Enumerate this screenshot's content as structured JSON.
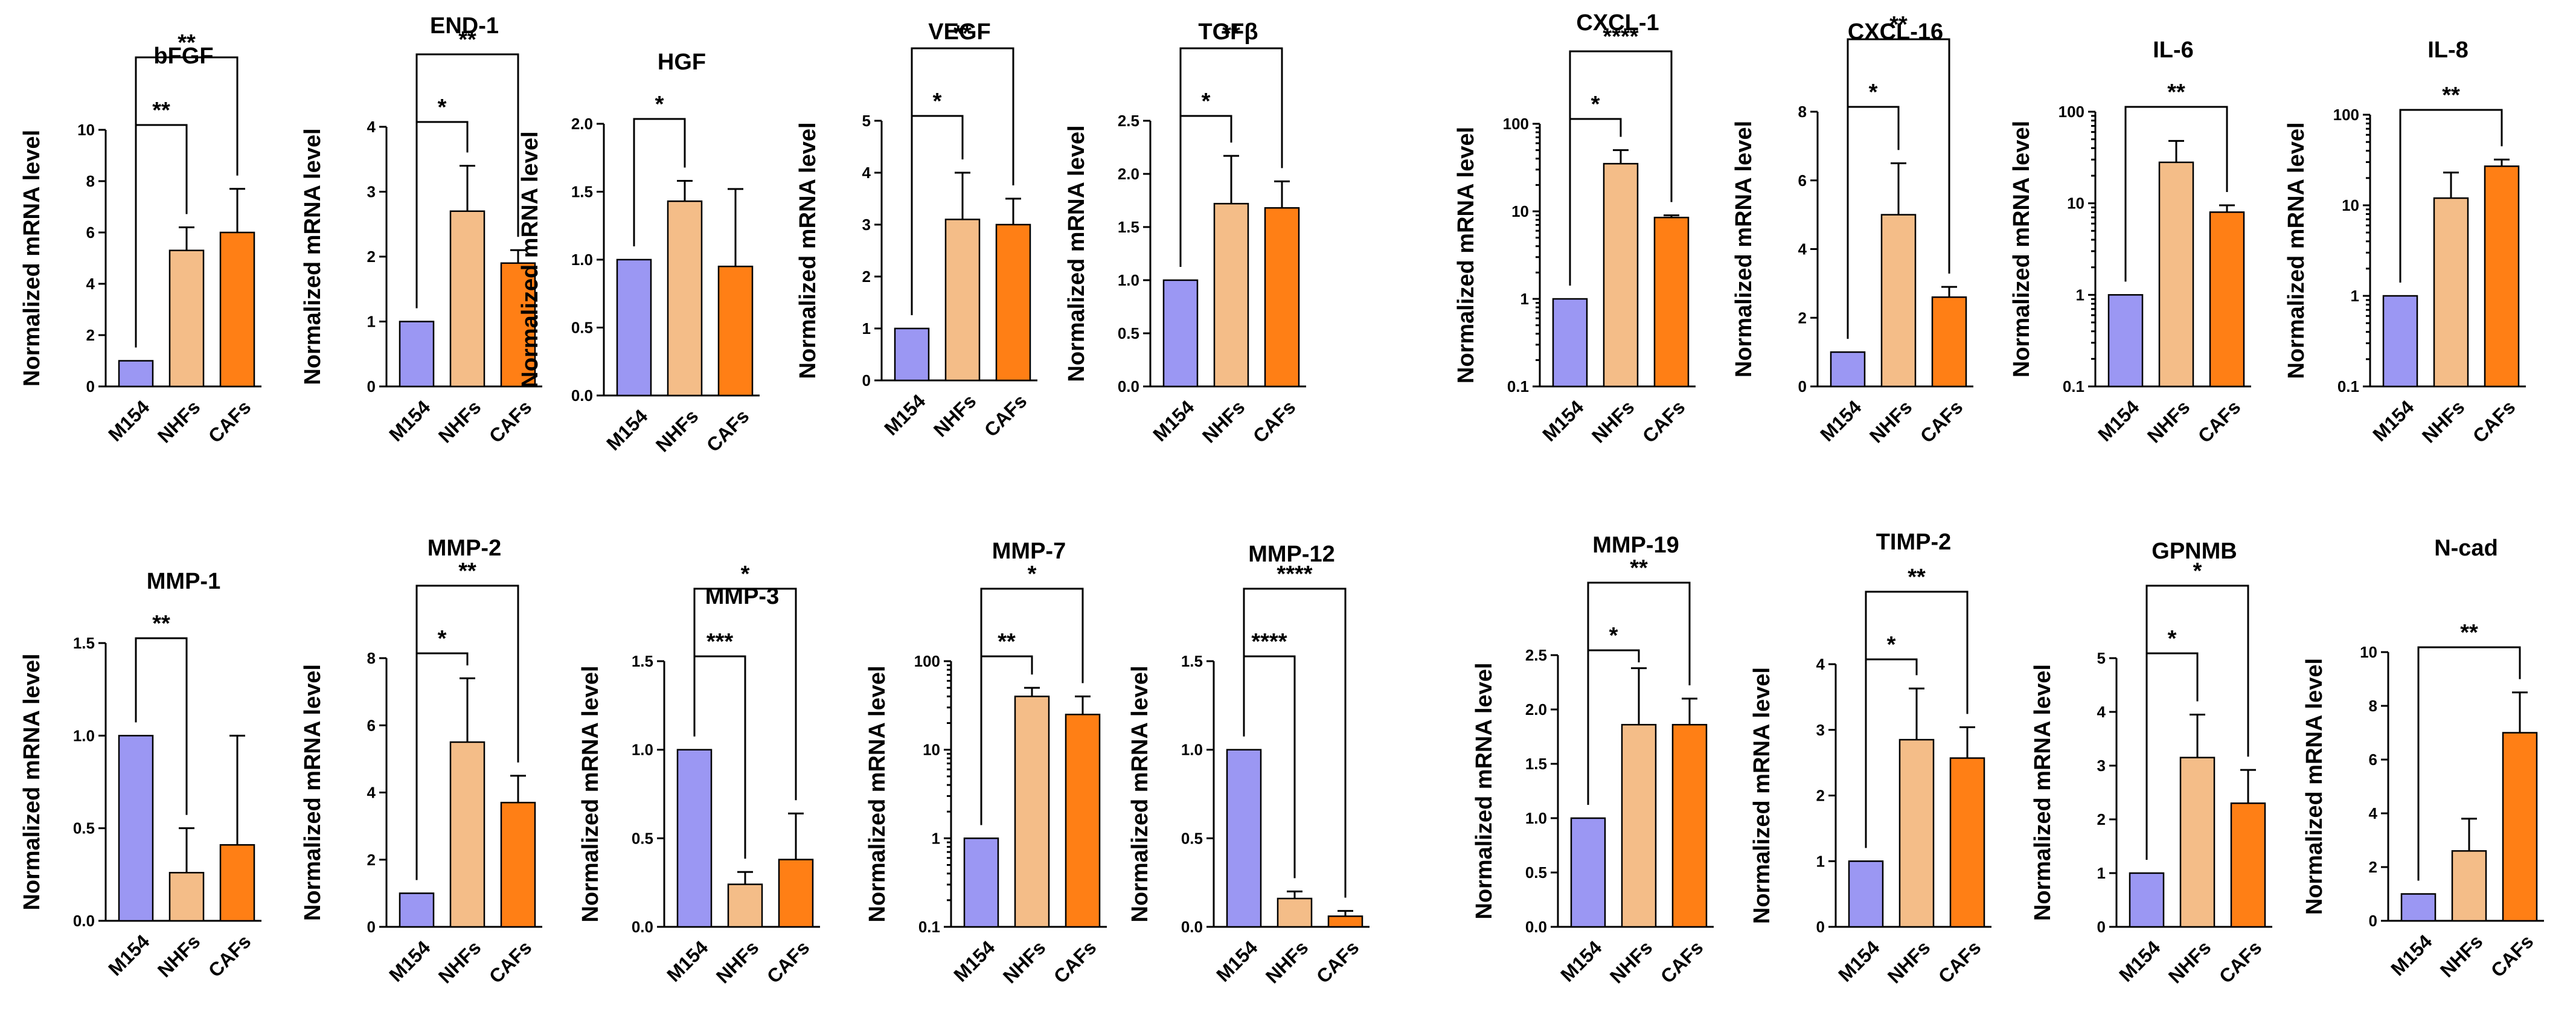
{
  "chart_data": [
    {
      "type": "bar",
      "title": "bFGF",
      "ylabel": "Normalized mRNA level",
      "scale": "linear",
      "ylim": [
        0,
        10
      ],
      "ticks": [
        "0",
        "2",
        "4",
        "6",
        "8",
        "10"
      ],
      "categories": [
        "M154",
        "NHFs",
        "CAFs"
      ],
      "values": [
        1.0,
        5.3,
        6.0
      ],
      "errors": [
        0,
        0.9,
        1.7
      ],
      "colors": [
        "#9b97f3",
        "#f4bd88",
        "#ff7f15"
      ],
      "significance": [
        {
          "label": "**",
          "from": 0,
          "to": 1,
          "level": 1
        },
        {
          "label": "**",
          "from": 0,
          "to": 2,
          "level": 2
        }
      ]
    },
    {
      "type": "bar",
      "title": "END-1",
      "ylabel": "Normalized mRNA level",
      "scale": "linear",
      "ylim": [
        0,
        4
      ],
      "ticks": [
        "0",
        "1",
        "2",
        "3",
        "4"
      ],
      "categories": [
        "M154",
        "NHFs",
        "CAFs"
      ],
      "values": [
        1.0,
        2.7,
        1.9
      ],
      "errors": [
        0,
        0.7,
        0.2
      ],
      "colors": [
        "#9b97f3",
        "#f4bd88",
        "#ff7f15"
      ],
      "significance": [
        {
          "label": "*",
          "from": 0,
          "to": 1,
          "level": 1
        },
        {
          "label": "**",
          "from": 0,
          "to": 2,
          "level": 2
        }
      ]
    },
    {
      "type": "bar",
      "title": "HGF",
      "ylabel": "Normalized mRNA level",
      "scale": "linear",
      "ylim": [
        0,
        2
      ],
      "ticks": [
        "0.0",
        "0.5",
        "1.0",
        "1.5",
        "2.0"
      ],
      "categories": [
        "M154",
        "NHFs",
        "CAFs"
      ],
      "values": [
        1.0,
        1.43,
        0.95
      ],
      "errors": [
        0,
        0.15,
        0.57
      ],
      "colors": [
        "#9b97f3",
        "#f4bd88",
        "#ff7f15"
      ],
      "significance": [
        {
          "label": "*",
          "from": 0,
          "to": 1,
          "level": 1
        }
      ]
    },
    {
      "type": "bar",
      "title": "VEGF",
      "ylabel": "Normalized mRNA level",
      "scale": "linear",
      "ylim": [
        0,
        5
      ],
      "ticks": [
        "0",
        "1",
        "2",
        "3",
        "4",
        "5"
      ],
      "categories": [
        "M154",
        "NHFs",
        "CAFs"
      ],
      "values": [
        1.0,
        3.1,
        3.0
      ],
      "errors": [
        0,
        0.9,
        0.5
      ],
      "colors": [
        "#9b97f3",
        "#f4bd88",
        "#ff7f15"
      ],
      "significance": [
        {
          "label": "*",
          "from": 0,
          "to": 1,
          "level": 1
        },
        {
          "label": "**",
          "from": 0,
          "to": 2,
          "level": 2
        }
      ]
    },
    {
      "type": "bar",
      "title": "TGFβ",
      "ylabel": "Normalized mRNA level",
      "scale": "linear",
      "ylim": [
        0,
        2.5
      ],
      "ticks": [
        "0.0",
        "0.5",
        "1.0",
        "1.5",
        "2.0",
        "2.5"
      ],
      "categories": [
        "M154",
        "NHFs",
        "CAFs"
      ],
      "values": [
        1.0,
        1.72,
        1.68
      ],
      "errors": [
        0,
        0.45,
        0.25
      ],
      "colors": [
        "#9b97f3",
        "#f4bd88",
        "#ff7f15"
      ],
      "significance": [
        {
          "label": "*",
          "from": 0,
          "to": 1,
          "level": 1
        },
        {
          "label": "**",
          "from": 0,
          "to": 2,
          "level": 2
        }
      ]
    },
    {
      "type": "bar",
      "title": "CXCL-1",
      "ylabel": "Normalized mRNA level",
      "scale": "log",
      "ylim": [
        0.1,
        100
      ],
      "ticks": [
        "0.1",
        "1",
        "10",
        "100"
      ],
      "categories": [
        "M154",
        "NHFs",
        "CAFs"
      ],
      "values": [
        1.0,
        35,
        8.5
      ],
      "errors": [
        0,
        15,
        0.5
      ],
      "colors": [
        "#9b97f3",
        "#f4bd88",
        "#ff7f15"
      ],
      "significance": [
        {
          "label": "*",
          "from": 0,
          "to": 1,
          "level": 1
        },
        {
          "label": "****",
          "from": 0,
          "to": 2,
          "level": 2
        }
      ]
    },
    {
      "type": "bar",
      "title": "CXCL-16",
      "ylabel": "Normalized mRNA level",
      "scale": "linear",
      "ylim": [
        0,
        8
      ],
      "ticks": [
        "0",
        "2",
        "4",
        "6",
        "8"
      ],
      "categories": [
        "M154",
        "NHFs",
        "CAFs"
      ],
      "values": [
        1.0,
        5.0,
        2.6
      ],
      "errors": [
        0,
        1.5,
        0.3
      ],
      "colors": [
        "#9b97f3",
        "#f4bd88",
        "#ff7f15"
      ],
      "significance": [
        {
          "label": "*",
          "from": 0,
          "to": 1,
          "level": 1
        },
        {
          "label": "**",
          "from": 0,
          "to": 2,
          "level": 2
        }
      ]
    },
    {
      "type": "bar",
      "title": "IL-6",
      "ylabel": "Normalized mRNA level",
      "scale": "log",
      "ylim": [
        0.1,
        100
      ],
      "ticks": [
        "0.1",
        "1",
        "10",
        "100"
      ],
      "categories": [
        "M154",
        "NHFs",
        "CAFs"
      ],
      "values": [
        1.0,
        28,
        8
      ],
      "errors": [
        0,
        20,
        1.5
      ],
      "colors": [
        "#9b97f3",
        "#f4bd88",
        "#ff7f15"
      ],
      "significance": [
        {
          "label": "**",
          "from": 0,
          "to": 2,
          "level": 1
        }
      ]
    },
    {
      "type": "bar",
      "title": "IL-8",
      "ylabel": "Normalized mRNA level",
      "scale": "log",
      "ylim": [
        0.1,
        100
      ],
      "ticks": [
        "0.1",
        "1",
        "10",
        "100"
      ],
      "categories": [
        "M154",
        "NHFs",
        "CAFs"
      ],
      "values": [
        1.0,
        12,
        27
      ],
      "errors": [
        0,
        11,
        5
      ],
      "colors": [
        "#9b97f3",
        "#f4bd88",
        "#ff7f15"
      ],
      "significance": [
        {
          "label": "**",
          "from": 0,
          "to": 2,
          "level": 1
        }
      ]
    },
    {
      "type": "bar",
      "title": "MMP-1",
      "ylabel": "Normalized mRNA level",
      "scale": "linear",
      "ylim": [
        0,
        1.5
      ],
      "ticks": [
        "0.0",
        "0.5",
        "1.0",
        "1.5"
      ],
      "categories": [
        "M154",
        "NHFs",
        "CAFs"
      ],
      "values": [
        1.0,
        0.26,
        0.41
      ],
      "errors": [
        0,
        0.24,
        0.59
      ],
      "colors": [
        "#9b97f3",
        "#f4bd88",
        "#ff7f15"
      ],
      "significance": [
        {
          "label": "**",
          "from": 0,
          "to": 1,
          "level": 1
        }
      ]
    },
    {
      "type": "bar",
      "title": "MMP-2",
      "ylabel": "Normalized mRNA level",
      "scale": "linear",
      "ylim": [
        0,
        8
      ],
      "ticks": [
        "0",
        "2",
        "4",
        "6",
        "8"
      ],
      "categories": [
        "M154",
        "NHFs",
        "CAFs"
      ],
      "values": [
        1.0,
        5.5,
        3.7
      ],
      "errors": [
        0,
        1.9,
        0.8
      ],
      "colors": [
        "#9b97f3",
        "#f4bd88",
        "#ff7f15"
      ],
      "significance": [
        {
          "label": "*",
          "from": 0,
          "to": 1,
          "level": 1
        },
        {
          "label": "**",
          "from": 0,
          "to": 2,
          "level": 2
        }
      ]
    },
    {
      "type": "bar",
      "title": "MMP-3",
      "ylabel": "Normalized mRNA level",
      "scale": "linear",
      "ylim": [
        0,
        1.5
      ],
      "ticks": [
        "0.0",
        "0.5",
        "1.0",
        "1.5"
      ],
      "categories": [
        "M154",
        "NHFs",
        "CAFs"
      ],
      "values": [
        1.0,
        0.24,
        0.38
      ],
      "errors": [
        0,
        0.07,
        0.26
      ],
      "colors": [
        "#9b97f3",
        "#f4bd88",
        "#ff7f15"
      ],
      "significance": [
        {
          "label": "***",
          "from": 0,
          "to": 1,
          "level": 1
        },
        {
          "label": "*",
          "from": 0,
          "to": 2,
          "level": 2
        }
      ]
    },
    {
      "type": "bar",
      "title": "MMP-7",
      "ylabel": "Normalized mRNA level",
      "scale": "log",
      "ylim": [
        0.1,
        100
      ],
      "ticks": [
        "0.1",
        "1",
        "10",
        "100"
      ],
      "categories": [
        "M154",
        "NHFs",
        "CAFs"
      ],
      "values": [
        1.0,
        40,
        25
      ],
      "errors": [
        0,
        10,
        15
      ],
      "colors": [
        "#9b97f3",
        "#f4bd88",
        "#ff7f15"
      ],
      "significance": [
        {
          "label": "**",
          "from": 0,
          "to": 1,
          "level": 1
        },
        {
          "label": "*",
          "from": 0,
          "to": 2,
          "level": 2
        }
      ]
    },
    {
      "type": "bar",
      "title": "MMP-12",
      "ylabel": "Normalized mRNA level",
      "scale": "linear",
      "ylim": [
        0,
        1.5
      ],
      "ticks": [
        "0.0",
        "0.5",
        "1.0",
        "1.5"
      ],
      "categories": [
        "M154",
        "NHFs",
        "CAFs"
      ],
      "values": [
        1.0,
        0.16,
        0.06
      ],
      "errors": [
        0,
        0.04,
        0.03
      ],
      "colors": [
        "#9b97f3",
        "#f4bd88",
        "#ff7f15"
      ],
      "significance": [
        {
          "label": "****",
          "from": 0,
          "to": 1,
          "level": 1
        },
        {
          "label": "****",
          "from": 0,
          "to": 2,
          "level": 2
        }
      ]
    },
    {
      "type": "bar",
      "title": "MMP-19",
      "ylabel": "Normalized mRNA level",
      "scale": "linear",
      "ylim": [
        0,
        2.5
      ],
      "ticks": [
        "0.0",
        "0.5",
        "1.0",
        "1.5",
        "2.0",
        "2.5"
      ],
      "categories": [
        "M154",
        "NHFs",
        "CAFs"
      ],
      "values": [
        1.0,
        1.86,
        1.86
      ],
      "errors": [
        0,
        0.52,
        0.24
      ],
      "colors": [
        "#9b97f3",
        "#f4bd88",
        "#ff7f15"
      ],
      "significance": [
        {
          "label": "*",
          "from": 0,
          "to": 1,
          "level": 1
        },
        {
          "label": "**",
          "from": 0,
          "to": 2,
          "level": 2
        }
      ]
    },
    {
      "type": "bar",
      "title": "TIMP-2",
      "ylabel": "Normalized mRNA level",
      "scale": "linear",
      "ylim": [
        0,
        4
      ],
      "ticks": [
        "0",
        "1",
        "2",
        "3",
        "4"
      ],
      "categories": [
        "M154",
        "NHFs",
        "CAFs"
      ],
      "values": [
        1.0,
        2.85,
        2.57
      ],
      "errors": [
        0,
        0.78,
        0.47
      ],
      "colors": [
        "#9b97f3",
        "#f4bd88",
        "#ff7f15"
      ],
      "significance": [
        {
          "label": "*",
          "from": 0,
          "to": 1,
          "level": 1
        },
        {
          "label": "**",
          "from": 0,
          "to": 2,
          "level": 2
        }
      ]
    },
    {
      "type": "bar",
      "title": "GPNMB",
      "ylabel": "Normalized mRNA level",
      "scale": "linear",
      "ylim": [
        0,
        5
      ],
      "ticks": [
        "0",
        "1",
        "2",
        "3",
        "4",
        "5"
      ],
      "categories": [
        "M154",
        "NHFs",
        "CAFs"
      ],
      "values": [
        1.0,
        3.15,
        2.3
      ],
      "errors": [
        0,
        0.8,
        0.62
      ],
      "colors": [
        "#9b97f3",
        "#f4bd88",
        "#ff7f15"
      ],
      "significance": [
        {
          "label": "*",
          "from": 0,
          "to": 1,
          "level": 1
        },
        {
          "label": "*",
          "from": 0,
          "to": 2,
          "level": 2
        }
      ]
    },
    {
      "type": "bar",
      "title": "N-cad",
      "ylabel": "Normalized mRNA level",
      "scale": "linear",
      "ylim": [
        0,
        10
      ],
      "ticks": [
        "0",
        "2",
        "4",
        "6",
        "8",
        "10"
      ],
      "categories": [
        "M154",
        "NHFs",
        "CAFs"
      ],
      "values": [
        1.0,
        2.6,
        7.0
      ],
      "errors": [
        0,
        1.2,
        1.5
      ],
      "colors": [
        "#9b97f3",
        "#f4bd88",
        "#ff7f15"
      ],
      "significance": [
        {
          "label": "**",
          "from": 0,
          "to": 2,
          "level": 1
        }
      ]
    }
  ]
}
